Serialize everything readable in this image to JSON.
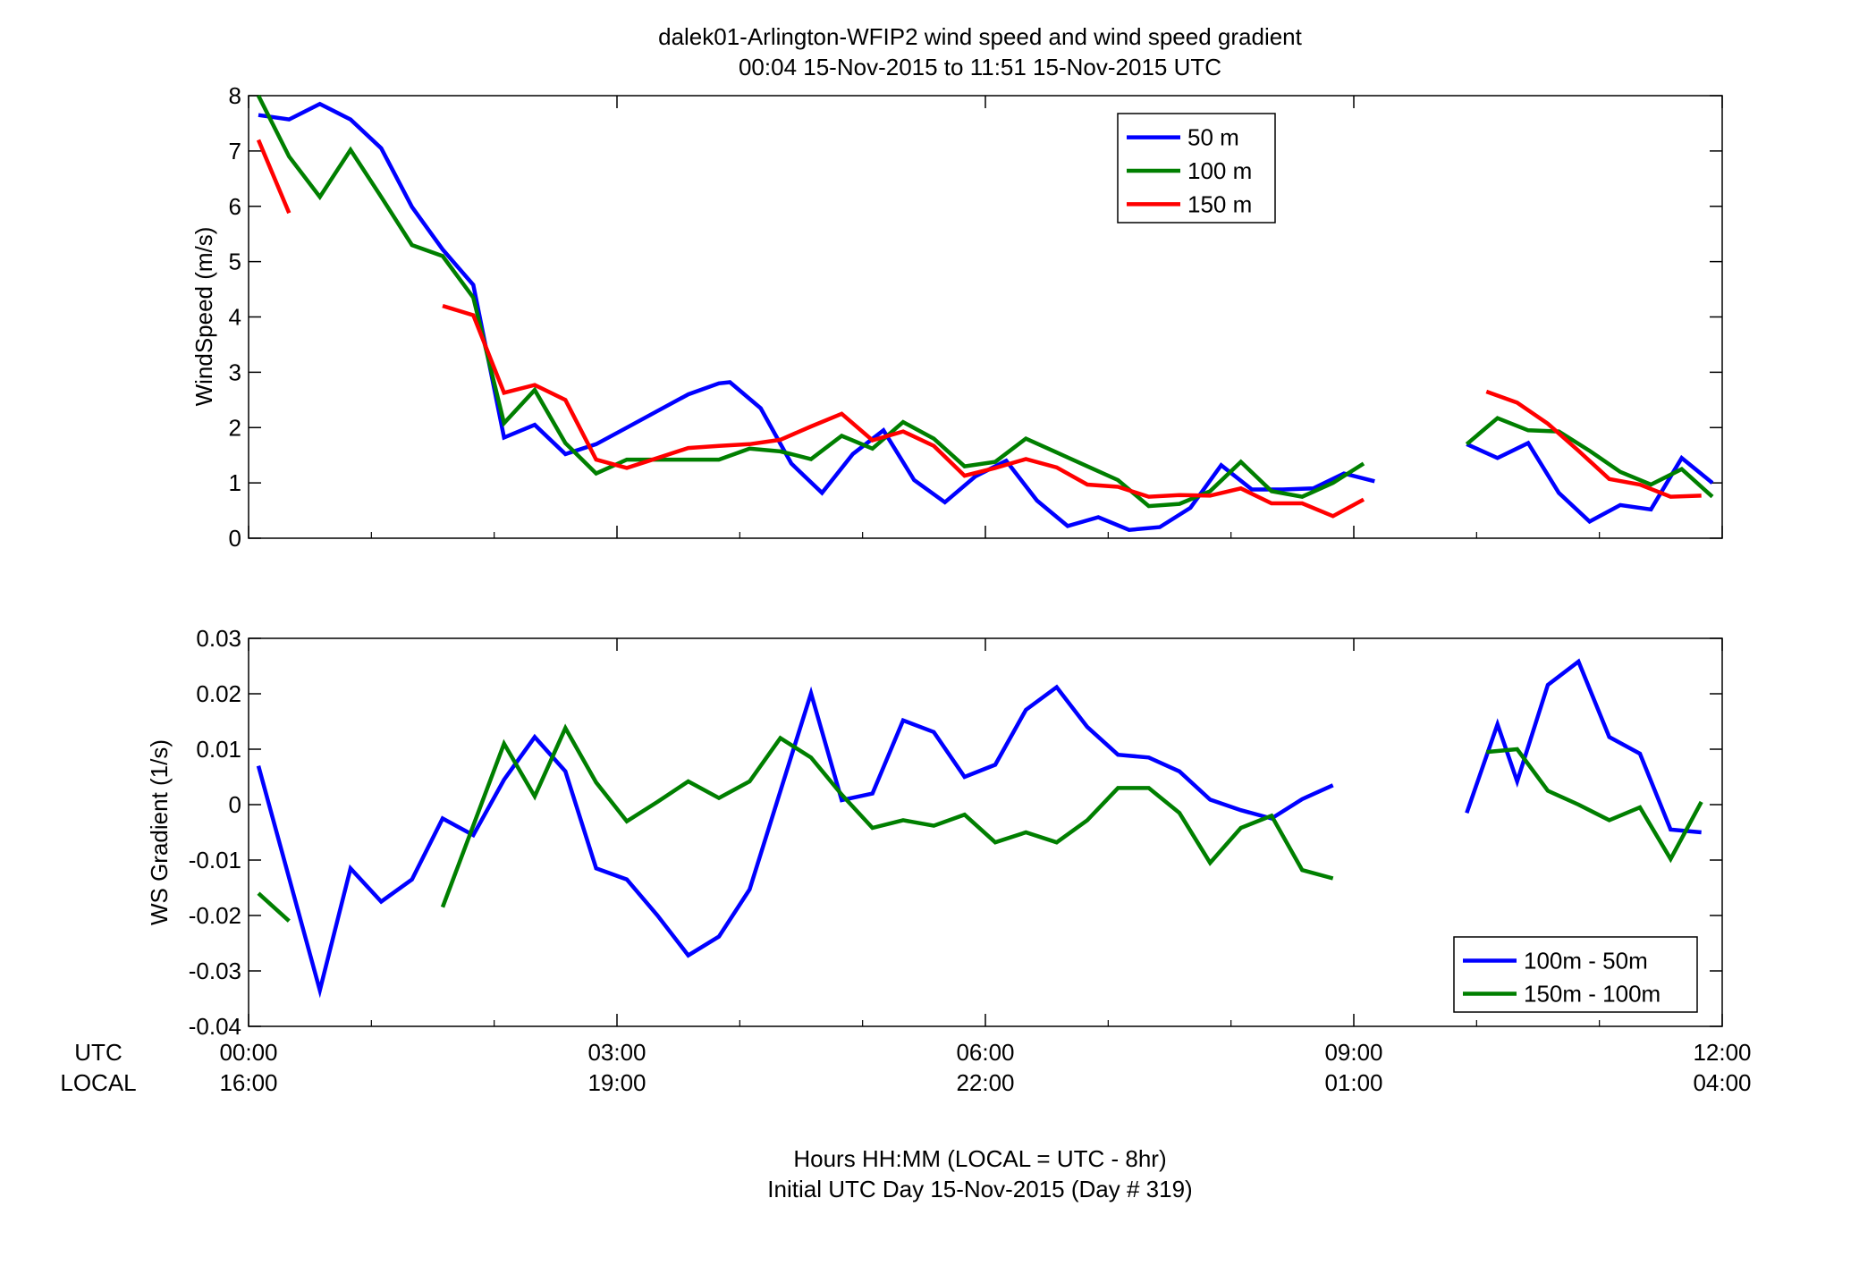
{
  "header": {
    "title_line1": "dalek01-Arlington-WFIP2  wind speed and wind speed gradient",
    "title_line2": "00:04 15-Nov-2015 to 11:51 15-Nov-2015  UTC"
  },
  "footer": {
    "xlabel_line1": "Hours HH:MM  (LOCAL = UTC - 8hr)",
    "xlabel_line2": "Initial UTC Day 15-Nov-2015 (Day # 319)"
  },
  "time_axis": {
    "utc_label": "UTC",
    "local_label": "LOCAL",
    "ticks_utc": [
      "00:00",
      "03:00",
      "06:00",
      "09:00",
      "12:00"
    ],
    "ticks_local": [
      "16:00",
      "19:00",
      "22:00",
      "01:00",
      "04:00"
    ]
  },
  "colors": {
    "blue": "#0000ff",
    "green": "#007f00",
    "red": "#ff0000"
  },
  "chart_data": [
    {
      "type": "line",
      "ylabel": "WindSpeed (m/s)",
      "xlim": [
        0,
        12
      ],
      "ylim": [
        0,
        8
      ],
      "yticks": [
        "0",
        "1",
        "2",
        "3",
        "4",
        "5",
        "6",
        "7",
        "8"
      ],
      "legend_position": "top-right",
      "series": [
        {
          "name": "50 m",
          "color": "#0000ff",
          "segments": [
            [
              [
                0.08,
                7.65
              ],
              [
                0.33,
                7.57
              ],
              [
                0.58,
                7.85
              ],
              [
                0.83,
                7.57
              ],
              [
                1.08,
                7.05
              ],
              [
                1.33,
                5.99
              ],
              [
                1.58,
                5.22
              ],
              [
                1.83,
                4.58
              ],
              [
                2.08,
                1.82
              ],
              [
                2.33,
                2.05
              ],
              [
                2.58,
                1.52
              ],
              [
                2.83,
                1.7
              ],
              [
                3.08,
                2.0
              ],
              [
                3.33,
                2.3
              ],
              [
                3.58,
                2.6
              ],
              [
                3.83,
                2.8
              ],
              [
                3.92,
                2.82
              ],
              [
                4.17,
                2.35
              ],
              [
                4.42,
                1.35
              ],
              [
                4.67,
                0.82
              ],
              [
                4.92,
                1.52
              ],
              [
                5.17,
                1.95
              ],
              [
                5.42,
                1.05
              ],
              [
                5.67,
                0.65
              ],
              [
                5.92,
                1.12
              ],
              [
                6.17,
                1.4
              ],
              [
                6.42,
                0.68
              ],
              [
                6.67,
                0.22
              ],
              [
                6.92,
                0.38
              ],
              [
                7.17,
                0.15
              ],
              [
                7.42,
                0.2
              ],
              [
                7.67,
                0.55
              ],
              [
                7.92,
                1.32
              ],
              [
                8.17,
                0.88
              ],
              [
                8.42,
                0.88
              ],
              [
                8.67,
                0.9
              ],
              [
                8.92,
                1.17
              ],
              [
                9.17,
                1.03
              ]
            ],
            [
              [
                9.92,
                1.7
              ],
              [
                10.17,
                1.45
              ],
              [
                10.42,
                1.72
              ],
              [
                10.67,
                0.82
              ],
              [
                10.92,
                0.3
              ],
              [
                11.17,
                0.6
              ],
              [
                11.42,
                0.52
              ],
              [
                11.67,
                1.45
              ],
              [
                11.92,
                1.0
              ]
            ]
          ]
        },
        {
          "name": "100 m",
          "color": "#007f00",
          "segments": [
            [
              [
                0.08,
                8.0
              ],
              [
                0.33,
                6.9
              ],
              [
                0.58,
                6.17
              ],
              [
                0.83,
                7.02
              ],
              [
                1.08,
                6.17
              ],
              [
                1.33,
                5.3
              ],
              [
                1.58,
                5.1
              ],
              [
                1.83,
                4.35
              ],
              [
                2.08,
                2.08
              ],
              [
                2.33,
                2.68
              ],
              [
                2.58,
                1.72
              ],
              [
                2.83,
                1.17
              ],
              [
                3.08,
                1.42
              ],
              [
                3.33,
                1.42
              ],
              [
                3.58,
                1.42
              ],
              [
                3.83,
                1.42
              ],
              [
                4.08,
                1.62
              ],
              [
                4.33,
                1.57
              ],
              [
                4.58,
                1.43
              ],
              [
                4.83,
                1.85
              ],
              [
                5.08,
                1.62
              ],
              [
                5.33,
                2.1
              ],
              [
                5.58,
                1.8
              ],
              [
                5.83,
                1.3
              ],
              [
                6.08,
                1.38
              ],
              [
                6.33,
                1.8
              ],
              [
                6.58,
                1.55
              ],
              [
                6.83,
                1.3
              ],
              [
                7.08,
                1.05
              ],
              [
                7.33,
                0.58
              ],
              [
                7.58,
                0.62
              ],
              [
                7.83,
                0.85
              ],
              [
                8.08,
                1.38
              ],
              [
                8.33,
                0.85
              ],
              [
                8.58,
                0.75
              ],
              [
                8.83,
                1.0
              ],
              [
                9.08,
                1.35
              ]
            ],
            [
              [
                9.92,
                1.7
              ],
              [
                10.17,
                2.17
              ],
              [
                10.42,
                1.95
              ],
              [
                10.67,
                1.93
              ],
              [
                10.92,
                1.58
              ],
              [
                11.17,
                1.2
              ],
              [
                11.42,
                0.97
              ],
              [
                11.67,
                1.25
              ],
              [
                11.92,
                0.75
              ]
            ]
          ]
        },
        {
          "name": "150 m",
          "color": "#ff0000",
          "segments": [
            [
              [
                0.08,
                7.2
              ],
              [
                0.33,
                5.88
              ]
            ],
            [
              [
                1.58,
                4.2
              ],
              [
                1.83,
                4.03
              ],
              [
                2.08,
                2.63
              ],
              [
                2.33,
                2.77
              ],
              [
                2.58,
                2.5
              ],
              [
                2.83,
                1.42
              ],
              [
                3.08,
                1.27
              ],
              [
                3.33,
                1.45
              ],
              [
                3.58,
                1.63
              ],
              [
                3.83,
                1.67
              ],
              [
                4.08,
                1.7
              ],
              [
                4.33,
                1.78
              ],
              [
                4.58,
                2.02
              ],
              [
                4.83,
                2.25
              ],
              [
                5.08,
                1.77
              ],
              [
                5.33,
                1.93
              ],
              [
                5.58,
                1.67
              ],
              [
                5.83,
                1.13
              ],
              [
                6.08,
                1.27
              ],
              [
                6.33,
                1.43
              ],
              [
                6.58,
                1.28
              ],
              [
                6.83,
                0.97
              ],
              [
                7.08,
                0.93
              ],
              [
                7.33,
                0.75
              ],
              [
                7.58,
                0.78
              ],
              [
                7.83,
                0.77
              ],
              [
                8.08,
                0.9
              ],
              [
                8.33,
                0.63
              ],
              [
                8.58,
                0.63
              ],
              [
                8.83,
                0.4
              ],
              [
                9.08,
                0.7
              ]
            ],
            [
              [
                10.08,
                2.65
              ],
              [
                10.33,
                2.45
              ],
              [
                10.58,
                2.07
              ],
              [
                10.83,
                1.58
              ],
              [
                11.08,
                1.07
              ],
              [
                11.33,
                0.97
              ],
              [
                11.58,
                0.75
              ],
              [
                11.83,
                0.77
              ]
            ]
          ]
        }
      ]
    },
    {
      "type": "line",
      "ylabel": "WS Gradient (1/s)",
      "xlim": [
        0,
        12
      ],
      "ylim": [
        -0.04,
        0.03
      ],
      "yticks": [
        "-0.04",
        "-0.03",
        "-0.02",
        "-0.01",
        "0",
        "0.01",
        "0.02",
        "0.03"
      ],
      "legend_position": "bottom-right",
      "series": [
        {
          "name": "100m - 50m",
          "color": "#0000ff",
          "segments": [
            [
              [
                0.08,
                0.007
              ],
              [
                0.58,
                -0.0335
              ],
              [
                0.83,
                -0.0115
              ],
              [
                1.08,
                -0.0175
              ],
              [
                1.33,
                -0.0135
              ],
              [
                1.58,
                -0.0025
              ],
              [
                1.83,
                -0.0055
              ],
              [
                2.08,
                0.0045
              ],
              [
                2.33,
                0.0122
              ],
              [
                2.58,
                0.006
              ],
              [
                2.83,
                -0.0115
              ],
              [
                3.08,
                -0.0135
              ],
              [
                3.33,
                -0.02
              ],
              [
                3.58,
                -0.0272
              ],
              [
                3.83,
                -0.0238
              ],
              [
                4.08,
                -0.0153
              ],
              [
                4.58,
                0.0201
              ],
              [
                4.83,
                0.0008
              ],
              [
                5.08,
                0.002
              ],
              [
                5.33,
                0.0152
              ],
              [
                5.58,
                0.0131
              ],
              [
                5.83,
                0.005
              ],
              [
                6.08,
                0.0072
              ],
              [
                6.33,
                0.0171
              ],
              [
                6.58,
                0.0212
              ],
              [
                6.83,
                0.014
              ],
              [
                7.08,
                0.009
              ],
              [
                7.33,
                0.0085
              ],
              [
                7.58,
                0.006
              ],
              [
                7.83,
                0.0009
              ],
              [
                8.08,
                -0.001
              ],
              [
                8.33,
                -0.0025
              ],
              [
                8.58,
                0.001
              ],
              [
                8.83,
                0.0035
              ]
            ],
            [
              [
                9.92,
                -0.0015
              ],
              [
                10.17,
                0.0145
              ],
              [
                10.33,
                0.0042
              ],
              [
                10.58,
                0.0216
              ],
              [
                10.83,
                0.0258
              ],
              [
                11.08,
                0.0122
              ],
              [
                11.33,
                0.0092
              ],
              [
                11.58,
                -0.0045
              ],
              [
                11.83,
                -0.005
              ]
            ]
          ]
        },
        {
          "name": "150m - 100m",
          "color": "#007f00",
          "segments": [
            [
              [
                0.08,
                -0.016
              ],
              [
                0.33,
                -0.021
              ]
            ],
            [
              [
                1.58,
                -0.0185
              ],
              [
                2.08,
                0.011
              ],
              [
                2.33,
                0.0015
              ],
              [
                2.58,
                0.0138
              ],
              [
                2.83,
                0.004
              ],
              [
                3.08,
                -0.003
              ],
              [
                3.33,
                0.0005
              ],
              [
                3.58,
                0.0042
              ],
              [
                3.83,
                0.0012
              ],
              [
                4.08,
                0.0042
              ],
              [
                4.33,
                0.012
              ],
              [
                4.58,
                0.0085
              ],
              [
                4.83,
                0.0018
              ],
              [
                5.08,
                -0.0042
              ],
              [
                5.33,
                -0.0028
              ],
              [
                5.58,
                -0.0038
              ],
              [
                5.83,
                -0.0018
              ],
              [
                6.08,
                -0.0068
              ],
              [
                6.33,
                -0.005
              ],
              [
                6.58,
                -0.0068
              ],
              [
                6.83,
                -0.0028
              ],
              [
                7.08,
                0.003
              ],
              [
                7.33,
                0.003
              ],
              [
                7.58,
                -0.0015
              ],
              [
                7.83,
                -0.0105
              ],
              [
                8.08,
                -0.0042
              ],
              [
                8.33,
                -0.002
              ],
              [
                8.58,
                -0.0118
              ],
              [
                8.83,
                -0.0133
              ]
            ],
            [
              [
                10.08,
                0.0095
              ],
              [
                10.33,
                0.01
              ],
              [
                10.58,
                0.0025
              ],
              [
                10.83,
                0.0
              ],
              [
                11.08,
                -0.0028
              ],
              [
                11.33,
                -0.0005
              ],
              [
                11.58,
                -0.0098
              ],
              [
                11.83,
                0.0005
              ]
            ]
          ]
        }
      ]
    }
  ]
}
